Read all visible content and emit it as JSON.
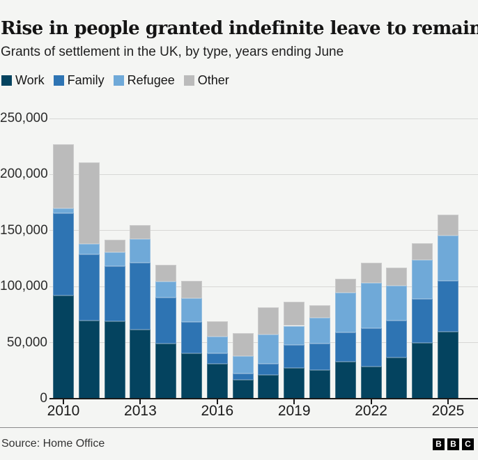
{
  "header": {
    "title": "Rise in people granted indefinite leave to remain",
    "subtitle": "Grants of settlement in the UK, by type, years ending June"
  },
  "chart_data": {
    "type": "bar",
    "stacked": true,
    "title": "Rise in people granted indefinite leave to remain",
    "subtitle": "Grants of settlement in the UK, by type, years ending June",
    "categories": [
      "2010",
      "2011",
      "2012",
      "2013",
      "2014",
      "2015",
      "2016",
      "2017",
      "2018",
      "2019",
      "2020",
      "2021",
      "2022",
      "2023",
      "2024",
      "2025"
    ],
    "series": [
      {
        "name": "Work",
        "color": "#04435f",
        "values": [
          92000,
          69500,
          69000,
          61500,
          49000,
          40500,
          31000,
          17000,
          21000,
          27500,
          25500,
          33000,
          28500,
          36500,
          50000,
          60000
        ]
      },
      {
        "name": "Family",
        "color": "#2e74b3",
        "values": [
          73500,
          59000,
          49000,
          60000,
          41000,
          28000,
          9500,
          5500,
          10000,
          20500,
          23500,
          26000,
          34500,
          33000,
          39000,
          45000
        ]
      },
      {
        "name": "Refugee",
        "color": "#6fa9d8",
        "values": [
          4000,
          9500,
          12500,
          21000,
          14500,
          21000,
          15000,
          15500,
          26000,
          17000,
          23000,
          35500,
          40500,
          31500,
          35000,
          40500
        ]
      },
      {
        "name": "Other",
        "color": "#bbbbbb",
        "values": [
          57500,
          73000,
          11000,
          12500,
          15000,
          15500,
          13500,
          20500,
          24500,
          21500,
          11500,
          12500,
          18000,
          16000,
          15000,
          18500
        ]
      }
    ],
    "ylim": [
      0,
      250000
    ],
    "ytick_step": 50000,
    "ytick_labels": [
      "0",
      "50,000",
      "100,000",
      "150,000",
      "200,000",
      "250,000"
    ],
    "xtick_indices": [
      0,
      3,
      6,
      9,
      12,
      15
    ],
    "xtick_labels": [
      "2010",
      "2013",
      "2016",
      "2019",
      "2022",
      "2025"
    ],
    "grid": true,
    "legend_position": "top-left"
  },
  "footer": {
    "source": "Source: Home Office",
    "logo_letters": [
      "B",
      "B",
      "C"
    ]
  },
  "colors": {
    "background": "#f4f5f3",
    "gridline": "#d7d7d5",
    "axis": "#1a1a1a"
  }
}
